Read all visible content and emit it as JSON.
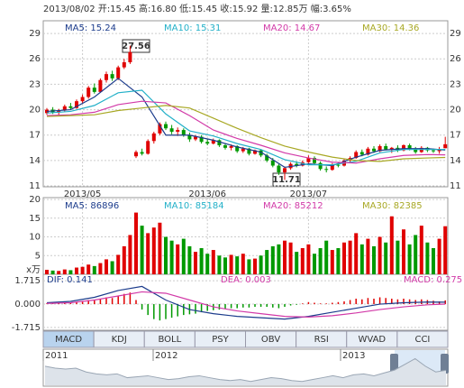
{
  "header": {
    "text": "2013/08/02 开:15.45 高:16.80 低:15.45 收:15.92 量:12.85万 幅:3.65%"
  },
  "annotations": [
    {
      "text": "27.56"
    },
    {
      "text": "11.71"
    }
  ],
  "tabs": [
    "MACD",
    "KDJ",
    "BOLL",
    "PSY",
    "OBV",
    "RSI",
    "WVAD",
    "CCI"
  ],
  "chart_data": [
    {
      "type": "candlestick",
      "up_color": "#e00000",
      "down_color": "#009900",
      "grid": true,
      "categories": [
        null,
        null,
        null,
        null,
        null,
        null,
        "2013/05",
        null,
        null,
        null,
        null,
        null,
        null,
        null,
        null,
        null,
        null,
        null,
        null,
        null,
        null,
        null,
        null,
        null,
        null,
        null,
        null,
        "2013/06",
        null,
        null,
        null,
        null,
        null,
        null,
        null,
        null,
        null,
        null,
        null,
        null,
        null,
        null,
        null,
        null,
        "2013/07",
        null,
        null,
        null,
        null,
        null,
        null,
        null,
        null,
        null,
        null,
        null,
        null,
        null,
        null,
        null,
        null,
        null,
        null,
        null,
        null,
        null,
        null,
        null
      ],
      "open": [
        19.6,
        20.0,
        19.7,
        19.9,
        20.4,
        20.2,
        21.0,
        21.5,
        22.6,
        22.1,
        23.5,
        24.2,
        23.7,
        25.0,
        25.6,
        14.5,
        15.0,
        14.8,
        16.3,
        17.2,
        18.3,
        17.8,
        17.4,
        17.6,
        17.0,
        16.5,
        16.8,
        16.2,
        16.0,
        16.4,
        15.8,
        15.5,
        15.7,
        15.1,
        15.4,
        14.8,
        15.2,
        14.6,
        14.0,
        13.4,
        12.6,
        13.1,
        13.6,
        13.4,
        13.8,
        14.3,
        13.7,
        13.0,
        12.9,
        13.5,
        13.4,
        14.0,
        14.3,
        15.0,
        14.7,
        15.4,
        15.1,
        15.7,
        15.3,
        15.5,
        15.2,
        15.8,
        15.4,
        15.0,
        15.5,
        15.2,
        15.1,
        15.45
      ],
      "high": [
        20.2,
        20.3,
        20.1,
        20.6,
        20.8,
        21.2,
        21.8,
        22.8,
        23.1,
        23.7,
        24.5,
        24.6,
        25.2,
        26.0,
        27.56,
        15.2,
        15.4,
        16.5,
        17.4,
        18.5,
        18.6,
        18.2,
        17.9,
        17.8,
        17.3,
        17.0,
        17.0,
        16.5,
        16.6,
        16.5,
        16.0,
        15.9,
        15.8,
        15.6,
        15.5,
        15.3,
        15.3,
        14.8,
        14.3,
        13.6,
        13.3,
        13.8,
        13.9,
        14.0,
        14.6,
        14.5,
        13.9,
        13.3,
        13.7,
        13.8,
        14.2,
        14.5,
        15.2,
        15.3,
        15.6,
        15.7,
        15.9,
        16.0,
        15.6,
        15.8,
        15.9,
        16.0,
        15.6,
        15.7,
        15.6,
        15.4,
        15.6,
        16.8
      ],
      "low": [
        19.4,
        19.5,
        19.4,
        19.8,
        20.0,
        20.1,
        20.7,
        21.3,
        21.9,
        22.0,
        23.2,
        23.4,
        23.5,
        24.8,
        25.4,
        14.3,
        14.6,
        14.7,
        16.0,
        17.0,
        17.6,
        17.1,
        16.9,
        16.8,
        16.2,
        16.3,
        16.0,
        15.8,
        15.9,
        15.6,
        15.3,
        15.2,
        14.9,
        14.9,
        14.6,
        14.7,
        14.4,
        13.8,
        13.2,
        12.3,
        11.71,
        12.9,
        13.2,
        13.3,
        13.7,
        13.5,
        12.8,
        12.6,
        12.8,
        13.2,
        13.3,
        13.8,
        14.2,
        14.5,
        14.6,
        14.9,
        15.0,
        15.2,
        14.9,
        15.0,
        15.1,
        15.2,
        14.8,
        14.9,
        15.0,
        14.9,
        14.8,
        15.45
      ],
      "close": [
        20.0,
        19.7,
        19.9,
        20.4,
        20.2,
        21.0,
        21.5,
        22.6,
        22.1,
        23.5,
        24.2,
        23.7,
        25.0,
        25.6,
        26.8,
        15.0,
        14.8,
        16.3,
        17.2,
        18.3,
        17.8,
        17.4,
        17.6,
        17.0,
        16.5,
        16.8,
        16.2,
        16.0,
        16.4,
        15.8,
        15.5,
        15.7,
        15.1,
        15.4,
        14.8,
        15.2,
        14.6,
        14.0,
        13.4,
        12.6,
        13.1,
        13.6,
        13.4,
        13.8,
        14.3,
        13.7,
        13.0,
        12.9,
        13.5,
        13.4,
        14.0,
        14.3,
        15.0,
        14.7,
        15.4,
        15.1,
        15.7,
        15.3,
        15.5,
        15.2,
        15.8,
        15.4,
        15.0,
        15.5,
        15.2,
        15.1,
        15.36,
        15.92
      ],
      "ylim": [
        10.9,
        30.5
      ],
      "yticks": [
        29,
        26,
        23,
        20,
        17,
        14,
        11
      ],
      "x": [
        0,
        4,
        8,
        12,
        16,
        20,
        24,
        28,
        32,
        36,
        40,
        44,
        48,
        52,
        56,
        60,
        64,
        67
      ],
      "series": [
        {
          "name": "MA5: 15.24",
          "color": "#1c3c8c",
          "values": [
            19.8,
            20.0,
            21.5,
            23.7,
            21.5,
            17.0,
            17.0,
            16.4,
            15.6,
            15.0,
            13.2,
            13.6,
            13.4,
            14.4,
            15.2,
            15.4,
            15.4,
            15.24
          ]
        },
        {
          "name": "MA10: 15.31",
          "color": "#22b0c8",
          "values": [
            19.6,
            19.8,
            20.5,
            22.0,
            22.3,
            19.5,
            17.5,
            16.9,
            16.0,
            15.3,
            14.1,
            13.5,
            13.5,
            13.9,
            14.9,
            15.3,
            15.3,
            15.31
          ]
        },
        {
          "name": "MA20: 14.67",
          "color": "#d23aa8",
          "values": [
            19.3,
            19.4,
            19.7,
            20.6,
            21.0,
            20.8,
            19.3,
            17.6,
            16.6,
            15.8,
            14.9,
            14.3,
            13.8,
            13.7,
            14.2,
            14.6,
            14.7,
            14.67
          ]
        },
        {
          "name": "MA30: 14.36",
          "color": "#a8a824",
          "values": [
            19.2,
            19.3,
            19.4,
            19.9,
            20.2,
            20.5,
            20.2,
            19.0,
            17.8,
            16.7,
            15.7,
            15.0,
            14.4,
            14.0,
            13.9,
            14.2,
            14.3,
            14.36
          ]
        }
      ]
    },
    {
      "type": "bar",
      "grid": true,
      "unit_label": "x万",
      "values": [
        1.2,
        1.0,
        0.9,
        1.3,
        1.1,
        1.8,
        2.0,
        2.6,
        2.2,
        3.0,
        4.0,
        3.5,
        5.2,
        7.5,
        10.5,
        16.5,
        13.0,
        11.0,
        12.5,
        13.8,
        10.0,
        9.0,
        8.0,
        9.5,
        7.5,
        6.0,
        7.0,
        5.5,
        6.5,
        5.0,
        4.5,
        5.2,
        4.8,
        5.5,
        4.0,
        4.2,
        5.0,
        6.5,
        7.5,
        8.0,
        9.0,
        8.5,
        6.0,
        7.0,
        8.0,
        5.5,
        7.0,
        9.0,
        6.5,
        7.0,
        8.5,
        9.0,
        11.0,
        8.0,
        9.5,
        7.5,
        10.0,
        8.5,
        15.5,
        9.0,
        12.0,
        8.0,
        10.5,
        13.0,
        8.5,
        7.0,
        9.5,
        12.85
      ],
      "ylim": [
        0,
        20.5
      ],
      "yticks": [
        20,
        15,
        10,
        5
      ],
      "legend": [
        {
          "name": "MA5: 86896",
          "color": "#1c3c8c"
        },
        {
          "name": "MA10: 85184",
          "color": "#22b0c8"
        },
        {
          "name": "MA20: 85212",
          "color": "#d23aa8"
        },
        {
          "name": "MA30: 82385",
          "color": "#a8a824"
        }
      ]
    },
    {
      "type": "macd",
      "grid": true,
      "up_color": "#e00000",
      "down_color": "#009900",
      "histogram": {
        "name": "MACD: 0.275",
        "color": "#d23aa8",
        "values": [
          0.05,
          0.03,
          0.04,
          0.08,
          0.1,
          0.15,
          0.2,
          0.3,
          0.28,
          0.4,
          0.5,
          0.45,
          0.6,
          0.75,
          0.85,
          0.3,
          -0.4,
          -0.8,
          -1.1,
          -1.2,
          -1.1,
          -1.0,
          -0.9,
          -0.8,
          -0.75,
          -0.7,
          -0.6,
          -0.5,
          -0.45,
          -0.4,
          -0.35,
          -0.3,
          -0.3,
          -0.25,
          -0.25,
          -0.2,
          -0.2,
          -0.2,
          -0.25,
          -0.3,
          -0.2,
          -0.1,
          -0.05,
          0.05,
          0.15,
          0.1,
          0.05,
          0.05,
          0.1,
          0.15,
          0.2,
          0.3,
          0.4,
          0.35,
          0.45,
          0.4,
          0.5,
          0.45,
          0.4,
          0.35,
          0.4,
          0.35,
          0.3,
          0.35,
          0.3,
          0.25,
          0.2,
          0.275
        ]
      },
      "x": [
        0,
        4,
        8,
        12,
        16,
        20,
        24,
        28,
        32,
        36,
        40,
        44,
        48,
        52,
        56,
        60,
        64,
        67
      ],
      "series": [
        {
          "name": "DIF: 0.141",
          "color": "#1c3c8c",
          "values": [
            0.1,
            0.2,
            0.5,
            1.0,
            1.3,
            0.3,
            -0.4,
            -0.7,
            -0.9,
            -1.0,
            -1.1,
            -0.9,
            -0.6,
            -0.3,
            0.0,
            0.1,
            0.15,
            0.141
          ]
        },
        {
          "name": "DEA: 0.003",
          "color": "#d23aa8",
          "values": [
            0.05,
            0.1,
            0.3,
            0.6,
            0.9,
            0.8,
            0.3,
            -0.2,
            -0.5,
            -0.7,
            -0.9,
            -0.95,
            -0.85,
            -0.65,
            -0.4,
            -0.2,
            -0.05,
            0.003
          ]
        }
      ],
      "ylim": [
        -1.92,
        2.19
      ],
      "yticks": [
        1.715,
        {
          "value": 0,
          "label": "0.000"
        },
        -1.715
      ]
    },
    {
      "type": "area",
      "color": "#9aa6b4",
      "xlabels": [
        "2011",
        "2012",
        "2013"
      ],
      "ylim": [
        8,
        26
      ],
      "values": [
        18,
        17,
        16.5,
        17,
        15,
        14,
        13.5,
        14,
        12,
        12.5,
        13,
        12,
        11,
        11.5,
        12.5,
        13,
        12,
        11,
        10.5,
        11,
        10,
        11,
        12,
        11.5,
        10.5,
        10,
        11,
        12,
        13,
        12,
        13.5,
        14,
        13,
        14.5,
        16,
        19,
        22,
        18,
        15,
        15.9
      ]
    }
  ]
}
